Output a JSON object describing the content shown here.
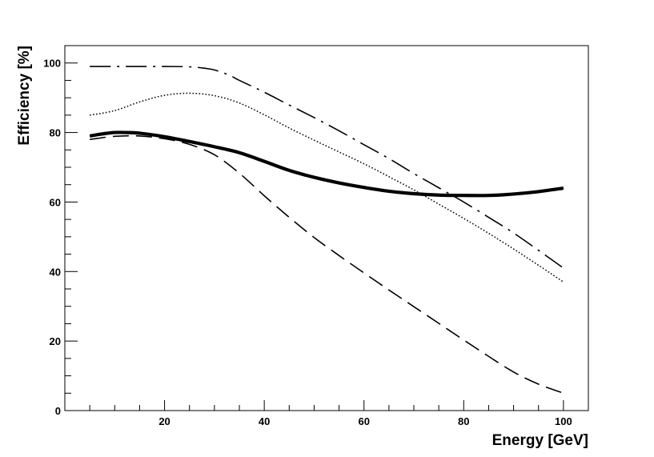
{
  "chart_data": {
    "type": "line",
    "title": "",
    "xlabel": "Energy [GeV]",
    "ylabel": "Efficiency [%]",
    "xlim": [
      0,
      105
    ],
    "ylim": [
      0,
      105
    ],
    "x_ticks": [
      20,
      40,
      60,
      80,
      100
    ],
    "y_ticks": [
      0,
      20,
      40,
      60,
      80,
      100
    ],
    "grid": false,
    "legend": "none",
    "series": [
      {
        "name": "solid-thick",
        "style": "solid-thick",
        "x": [
          5,
          8,
          10,
          12,
          15,
          20,
          25,
          30,
          35,
          40,
          45,
          50,
          55,
          60,
          65,
          70,
          75,
          80,
          85,
          90,
          95,
          100
        ],
        "y": [
          79,
          79.7,
          80,
          80,
          79.8,
          78.8,
          77.4,
          75.9,
          74.2,
          71.7,
          69.1,
          67.1,
          65.5,
          64.2,
          63.1,
          62.4,
          62,
          61.9,
          61.9,
          62.3,
          63,
          64
        ]
      },
      {
        "name": "dash-dot",
        "style": "dash-dot",
        "x": [
          5,
          10,
          15,
          20,
          25,
          28,
          30,
          33,
          35,
          40,
          45,
          50,
          55,
          60,
          65,
          70,
          75,
          80,
          85,
          90,
          95,
          100
        ],
        "y": [
          99,
          99,
          99,
          99,
          98.9,
          98.5,
          98,
          96.5,
          95,
          91.6,
          87.9,
          84.3,
          80.5,
          76.5,
          72.5,
          68.2,
          64.1,
          60,
          55.6,
          51.1,
          46.1,
          41
        ]
      },
      {
        "name": "dotted",
        "style": "dotted",
        "x": [
          5,
          10,
          15,
          20,
          25,
          30,
          35,
          40,
          45,
          50,
          55,
          60,
          65,
          70,
          75,
          80,
          85,
          90,
          95,
          100
        ],
        "y": [
          85,
          86.3,
          88.8,
          90.7,
          91.3,
          90.6,
          88.5,
          85.1,
          81.3,
          77.8,
          74.4,
          71,
          67.3,
          63.5,
          59.4,
          55.3,
          51,
          46.5,
          41.8,
          37
        ]
      },
      {
        "name": "dashed",
        "style": "dashed",
        "x": [
          5,
          10,
          15,
          20,
          25,
          30,
          35,
          40,
          45,
          50,
          55,
          60,
          65,
          70,
          75,
          80,
          85,
          90,
          95,
          100
        ],
        "y": [
          78,
          78.9,
          79,
          78.2,
          76.6,
          73.6,
          68.3,
          61.8,
          55.6,
          49.8,
          44.6,
          39.6,
          34.7,
          29.9,
          25.1,
          20.3,
          15.6,
          11.1,
          7.6,
          5
        ]
      }
    ]
  }
}
